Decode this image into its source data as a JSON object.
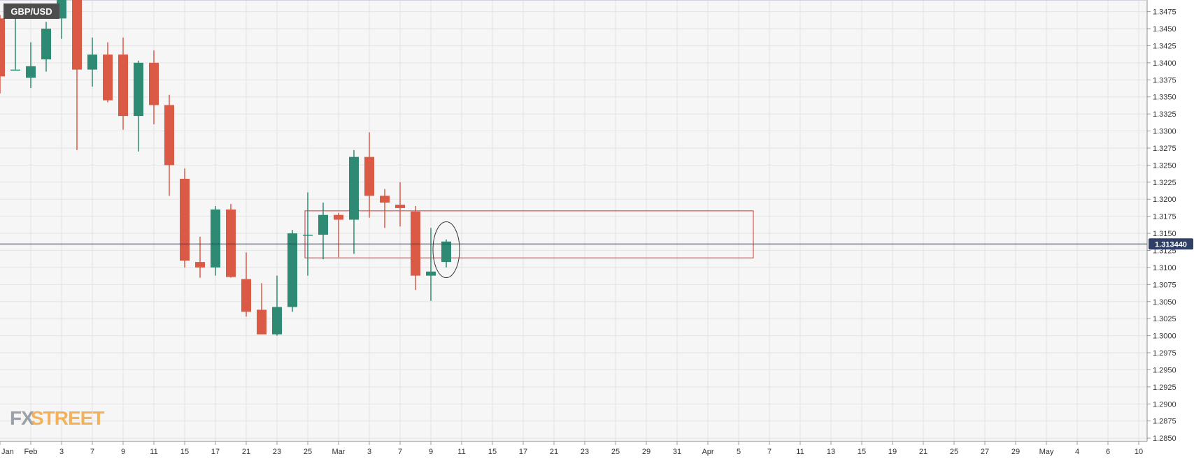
{
  "symbol_label": "GBP/USD",
  "current_price_label": "1.313440",
  "watermark": {
    "fx": "FX",
    "street": "STREET"
  },
  "colors": {
    "bull": "#2e8a73",
    "bear": "#db5a45",
    "plot_bg": "#f6f6f6",
    "grid": "#e3e3e3",
    "price_line": "#2f3f66",
    "price_tag_bg": "#2f3f66",
    "zone": "#d9534f",
    "symbol_tag_bg": "#4d4d4d",
    "watermark_fx": "#9aa0a6",
    "watermark_street": "#f3b25a"
  },
  "chart_data": {
    "type": "candlestick",
    "title": "GBP/USD",
    "ylim": [
      1.2845,
      1.3492
    ],
    "y_ticks": [
      "1.3475",
      "1.3450",
      "1.3425",
      "1.3400",
      "1.3375",
      "1.3350",
      "1.3325",
      "1.3300",
      "1.3275",
      "1.3250",
      "1.3225",
      "1.3200",
      "1.3175",
      "1.3150",
      "1.3125",
      "1.3100",
      "1.3075",
      "1.3050",
      "1.3025",
      "1.3000",
      "1.2975",
      "1.2950",
      "1.2925",
      "1.2900",
      "1.2875",
      "1.2850"
    ],
    "x_ticks": [
      "Jan",
      "Feb",
      "3",
      "7",
      "9",
      "11",
      "15",
      "17",
      "21",
      "23",
      "25",
      "Mar",
      "3",
      "7",
      "9",
      "11",
      "15",
      "17",
      "21",
      "23",
      "25",
      "29",
      "31",
      "Apr",
      "5",
      "7",
      "11",
      "13",
      "15",
      "19",
      "21",
      "25",
      "27",
      "29",
      "May",
      "4",
      "6",
      "10"
    ],
    "current_price": 1.31344,
    "candles": [
      {
        "o": 1.3465,
        "h": 1.347,
        "l": 1.3355,
        "c": 1.338
      },
      {
        "o": 1.339,
        "h": 1.3475,
        "l": 1.339,
        "c": 1.339
      },
      {
        "o": 1.3378,
        "h": 1.343,
        "l": 1.3363,
        "c": 1.3395
      },
      {
        "o": 1.3405,
        "h": 1.346,
        "l": 1.3387,
        "c": 1.345
      },
      {
        "o": 1.3465,
        "h": 1.35,
        "l": 1.3435,
        "c": 1.35
      },
      {
        "o": 1.3492,
        "h": 1.3492,
        "l": 1.3272,
        "c": 1.339
      },
      {
        "o": 1.339,
        "h": 1.3437,
        "l": 1.3365,
        "c": 1.3412
      },
      {
        "o": 1.3412,
        "h": 1.343,
        "l": 1.3342,
        "c": 1.3345
      },
      {
        "o": 1.3412,
        "h": 1.3437,
        "l": 1.3302,
        "c": 1.3322
      },
      {
        "o": 1.3322,
        "h": 1.3403,
        "l": 1.327,
        "c": 1.34
      },
      {
        "o": 1.34,
        "h": 1.3418,
        "l": 1.331,
        "c": 1.3338
      },
      {
        "o": 1.3338,
        "h": 1.3353,
        "l": 1.3205,
        "c": 1.325
      },
      {
        "o": 1.323,
        "h": 1.3245,
        "l": 1.31,
        "c": 1.311
      },
      {
        "o": 1.3108,
        "h": 1.3145,
        "l": 1.3085,
        "c": 1.31
      },
      {
        "o": 1.31,
        "h": 1.319,
        "l": 1.3088,
        "c": 1.3185
      },
      {
        "o": 1.3185,
        "h": 1.3193,
        "l": 1.3085,
        "c": 1.3086
      },
      {
        "o": 1.3083,
        "h": 1.3122,
        "l": 1.3028,
        "c": 1.3035
      },
      {
        "o": 1.3038,
        "h": 1.3077,
        "l": 1.3002,
        "c": 1.3002
      },
      {
        "o": 1.3002,
        "h": 1.3088,
        "l": 1.3,
        "c": 1.3042
      },
      {
        "o": 1.3042,
        "h": 1.3155,
        "l": 1.3035,
        "c": 1.315
      },
      {
        "o": 1.3148,
        "h": 1.321,
        "l": 1.3088,
        "c": 1.3148
      },
      {
        "o": 1.3148,
        "h": 1.3195,
        "l": 1.3112,
        "c": 1.3177
      },
      {
        "o": 1.3177,
        "h": 1.318,
        "l": 1.3115,
        "c": 1.317
      },
      {
        "o": 1.317,
        "h": 1.3272,
        "l": 1.312,
        "c": 1.3262
      },
      {
        "o": 1.3262,
        "h": 1.3298,
        "l": 1.3173,
        "c": 1.3205
      },
      {
        "o": 1.3205,
        "h": 1.3215,
        "l": 1.3158,
        "c": 1.3195
      },
      {
        "o": 1.3192,
        "h": 1.3225,
        "l": 1.316,
        "c": 1.3187
      },
      {
        "o": 1.3182,
        "h": 1.319,
        "l": 1.3067,
        "c": 1.3088
      },
      {
        "o": 1.3088,
        "h": 1.3158,
        "l": 1.3051,
        "c": 1.3094
      },
      {
        "o": 1.3108,
        "h": 1.3141,
        "l": 1.31,
        "c": 1.3138
      }
    ],
    "annotations": [
      {
        "type": "rectangle",
        "candle_start": 20,
        "candle_end": 29.5,
        "y_top": 1.3183,
        "y_bottom": 1.3114,
        "extends_to": "Apr 6"
      },
      {
        "type": "ellipse",
        "around_candles": [
          28,
          29
        ],
        "y_center": 1.3128
      }
    ]
  }
}
